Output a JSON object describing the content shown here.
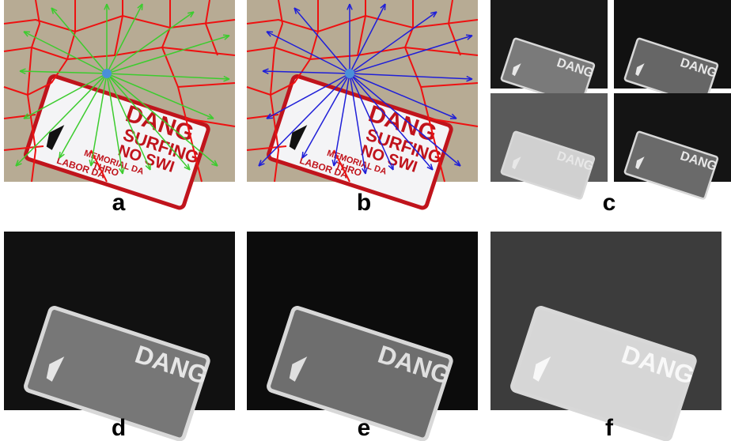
{
  "panels": [
    {
      "label": "a"
    },
    {
      "label": "b"
    },
    {
      "label": "c"
    },
    {
      "label": "d"
    },
    {
      "label": "e"
    },
    {
      "label": "f"
    }
  ],
  "sign_text": [
    "DANG",
    "SURFING",
    "NO SWI",
    "MEMORIAL DA",
    "THRO",
    "LABOR DA"
  ]
}
